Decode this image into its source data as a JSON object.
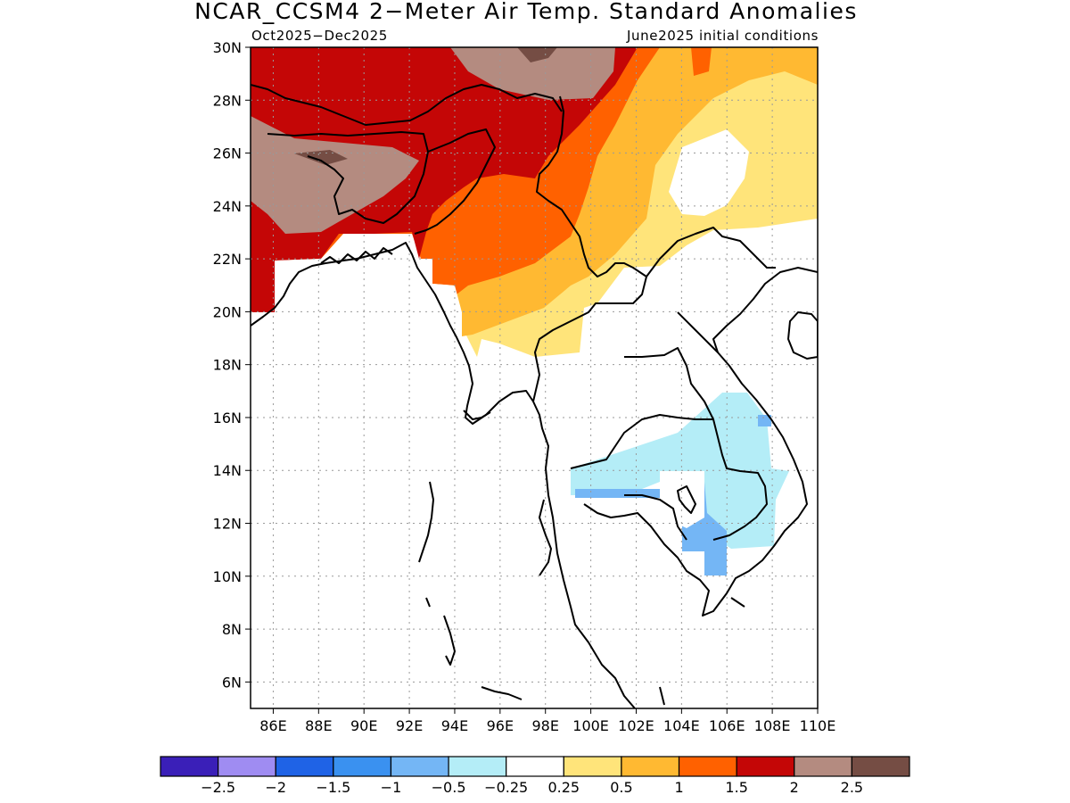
{
  "figure": {
    "title": "NCAR_CCSM4 2−Meter Air Temp. Standard Anomalies",
    "subtitle_left": "Oct2025−Dec2025",
    "subtitle_right": "June2025 initial conditions"
  },
  "chart_data": {
    "type": "heatmap",
    "title": "NCAR_CCSM4 2−Meter Air Temp. Standard Anomalies",
    "subtitle": "Oct2025−Dec2025 / June2025 initial conditions",
    "xlim": [
      85,
      110
    ],
    "ylim": [
      5,
      30
    ],
    "grid": true,
    "x_ticks": [
      "86E",
      "88E",
      "90E",
      "92E",
      "94E",
      "96E",
      "98E",
      "100E",
      "102E",
      "104E",
      "106E",
      "108E",
      "110E"
    ],
    "y_ticks": [
      "30N",
      "28N",
      "26N",
      "24N",
      "22N",
      "20N",
      "18N",
      "16N",
      "14N",
      "12N",
      "10N",
      "8N",
      "6N"
    ],
    "legend_position": "bottom",
    "colorbar": {
      "colors": [
        "#3a1fb8",
        "#9f8cf2",
        "#1f63e6",
        "#3a91f0",
        "#74b6f5",
        "#b4edf7",
        "#ffffff",
        "#ffe47a",
        "#ffb932",
        "#ff6100",
        "#c40606",
        "#b48b80",
        "#754d44"
      ],
      "labels": [
        "−2.5",
        "−2",
        "−1.5",
        "−1",
        "−0.5",
        "−0.25",
        "0.25",
        "0.5",
        "1",
        "1.5",
        "2",
        "2.5"
      ]
    }
  }
}
